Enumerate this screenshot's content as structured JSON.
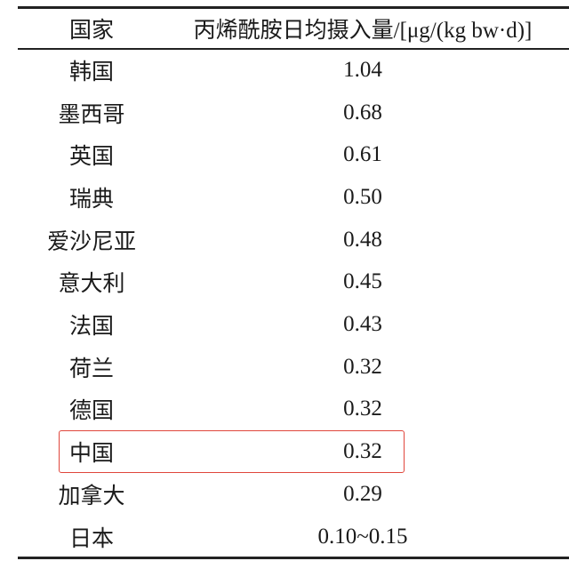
{
  "table": {
    "headers": [
      "国家",
      "丙烯酰胺日均摄入量/[μg/(kg bw·d)]"
    ],
    "rows": [
      [
        "韩国",
        "1.04"
      ],
      [
        "墨西哥",
        "0.68"
      ],
      [
        "英国",
        "0.61"
      ],
      [
        "瑞典",
        "0.50"
      ],
      [
        "爱沙尼亚",
        "0.48"
      ],
      [
        "意大利",
        "0.45"
      ],
      [
        "法国",
        "0.43"
      ],
      [
        "荷兰",
        "0.32"
      ],
      [
        "德国",
        "0.32"
      ],
      [
        "中国",
        "0.32"
      ],
      [
        "加拿大",
        "0.29"
      ],
      [
        "日本",
        "0.10~0.15"
      ]
    ],
    "highlighted_row": "中国",
    "highlight_color": "#e0463c"
  }
}
